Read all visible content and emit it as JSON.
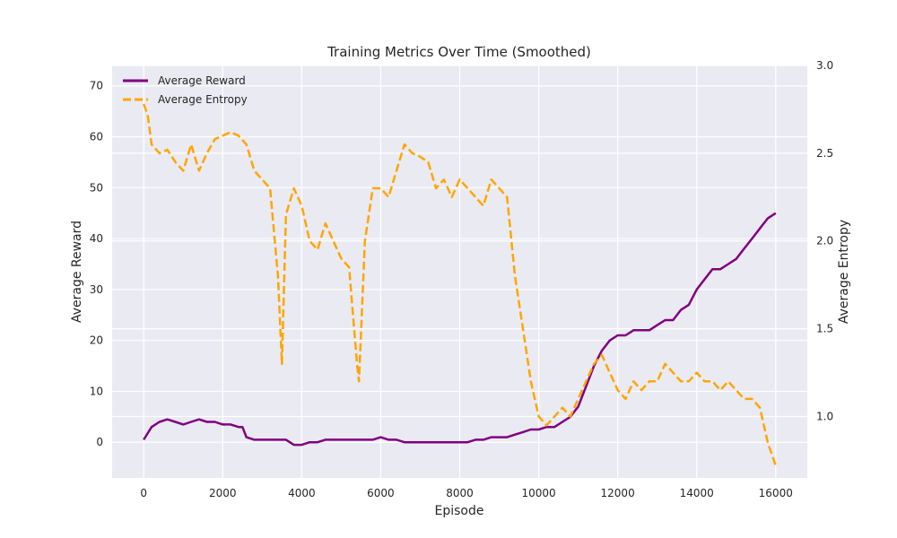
{
  "chart_data": {
    "type": "line",
    "title": "Training Metrics Over Time (Smoothed)",
    "xlabel": "Episode",
    "ylabel": "Average Reward",
    "y2label": "Average Entropy",
    "xlim": [
      -800,
      16800
    ],
    "ylim": [
      -7,
      74
    ],
    "y2lim": [
      0.65,
      3.0
    ],
    "xticks": [
      "0",
      "2000",
      "4000",
      "6000",
      "8000",
      "10000",
      "12000",
      "14000",
      "16000"
    ],
    "yticks": [
      "0",
      "10",
      "20",
      "30",
      "40",
      "50",
      "60",
      "70"
    ],
    "y2ticks": [
      "1.0",
      "1.5",
      "2.0",
      "2.5",
      "3.0"
    ],
    "grid": true,
    "legend": "top-left",
    "series": [
      {
        "name": "Average Reward",
        "axis": "left",
        "color": "#800080",
        "style": "solid",
        "x": [
          0,
          200,
          400,
          600,
          800,
          1000,
          1200,
          1400,
          1600,
          1800,
          2000,
          2200,
          2400,
          2500,
          2600,
          2800,
          3000,
          3200,
          3400,
          3600,
          3800,
          4000,
          4200,
          4400,
          4600,
          4800,
          5000,
          5200,
          5400,
          5600,
          5800,
          6000,
          6200,
          6400,
          6600,
          6800,
          7000,
          7200,
          7400,
          7600,
          7800,
          8000,
          8200,
          8400,
          8600,
          8800,
          9000,
          9200,
          9400,
          9600,
          9800,
          10000,
          10200,
          10400,
          10600,
          10800,
          11000,
          11200,
          11400,
          11600,
          11800,
          12000,
          12200,
          12400,
          12600,
          12800,
          13000,
          13200,
          13400,
          13600,
          13800,
          14000,
          14200,
          14400,
          14600,
          14800,
          15000,
          15200,
          15400,
          15600,
          15800,
          16000
        ],
        "values": [
          0.5,
          3,
          4,
          4.5,
          4,
          3.5,
          4,
          4.5,
          4,
          4,
          3.5,
          3.5,
          3,
          3,
          1,
          0.5,
          0.5,
          0.5,
          0.5,
          0.5,
          -0.5,
          -0.5,
          0,
          0,
          0.5,
          0.5,
          0.5,
          0.5,
          0.5,
          0.5,
          0.5,
          1,
          0.5,
          0.5,
          0,
          0,
          0,
          0,
          0,
          0,
          0,
          0,
          0,
          0.5,
          0.5,
          1,
          1,
          1,
          1.5,
          2,
          2.5,
          2.5,
          3,
          3,
          4,
          5,
          7,
          11,
          15,
          18,
          20,
          21,
          21,
          22,
          22,
          22,
          23,
          24,
          24,
          26,
          27,
          30,
          32,
          34,
          34,
          35,
          36,
          38,
          40,
          42,
          44,
          45
        ]
      },
      {
        "name": "Average Entropy",
        "axis": "right",
        "color": "#FFA500",
        "style": "dashed",
        "x": [
          0,
          100,
          200,
          400,
          600,
          800,
          1000,
          1200,
          1400,
          1600,
          1800,
          2000,
          2200,
          2400,
          2600,
          2800,
          3000,
          3200,
          3400,
          3500,
          3600,
          3800,
          4000,
          4200,
          4400,
          4600,
          4800,
          5000,
          5200,
          5400,
          5450,
          5600,
          5800,
          6000,
          6200,
          6400,
          6600,
          6800,
          7000,
          7200,
          7400,
          7600,
          7800,
          8000,
          8200,
          8400,
          8600,
          8800,
          9000,
          9200,
          9400,
          9600,
          9800,
          10000,
          10200,
          10400,
          10600,
          10800,
          11000,
          11200,
          11400,
          11600,
          11800,
          12000,
          12200,
          12400,
          12600,
          12800,
          13000,
          13200,
          13400,
          13600,
          13800,
          14000,
          14200,
          14400,
          14600,
          14800,
          15000,
          15200,
          15400,
          15600,
          15800,
          16000
        ],
        "values": [
          2.78,
          2.72,
          2.55,
          2.5,
          2.52,
          2.45,
          2.4,
          2.55,
          2.4,
          2.5,
          2.58,
          2.6,
          2.62,
          2.6,
          2.55,
          2.4,
          2.35,
          2.3,
          1.8,
          1.3,
          2.15,
          2.3,
          2.2,
          2.0,
          1.95,
          2.1,
          2.0,
          1.9,
          1.85,
          1.3,
          1.2,
          2.0,
          2.3,
          2.3,
          2.25,
          2.4,
          2.55,
          2.5,
          2.48,
          2.45,
          2.3,
          2.35,
          2.25,
          2.35,
          2.3,
          2.25,
          2.2,
          2.35,
          2.3,
          2.25,
          1.8,
          1.5,
          1.2,
          1.0,
          0.95,
          1.0,
          1.05,
          1.0,
          1.1,
          1.2,
          1.3,
          1.35,
          1.25,
          1.15,
          1.1,
          1.2,
          1.15,
          1.2,
          1.2,
          1.3,
          1.25,
          1.2,
          1.2,
          1.25,
          1.2,
          1.2,
          1.15,
          1.2,
          1.15,
          1.1,
          1.1,
          1.05,
          0.85,
          0.72
        ]
      }
    ]
  }
}
